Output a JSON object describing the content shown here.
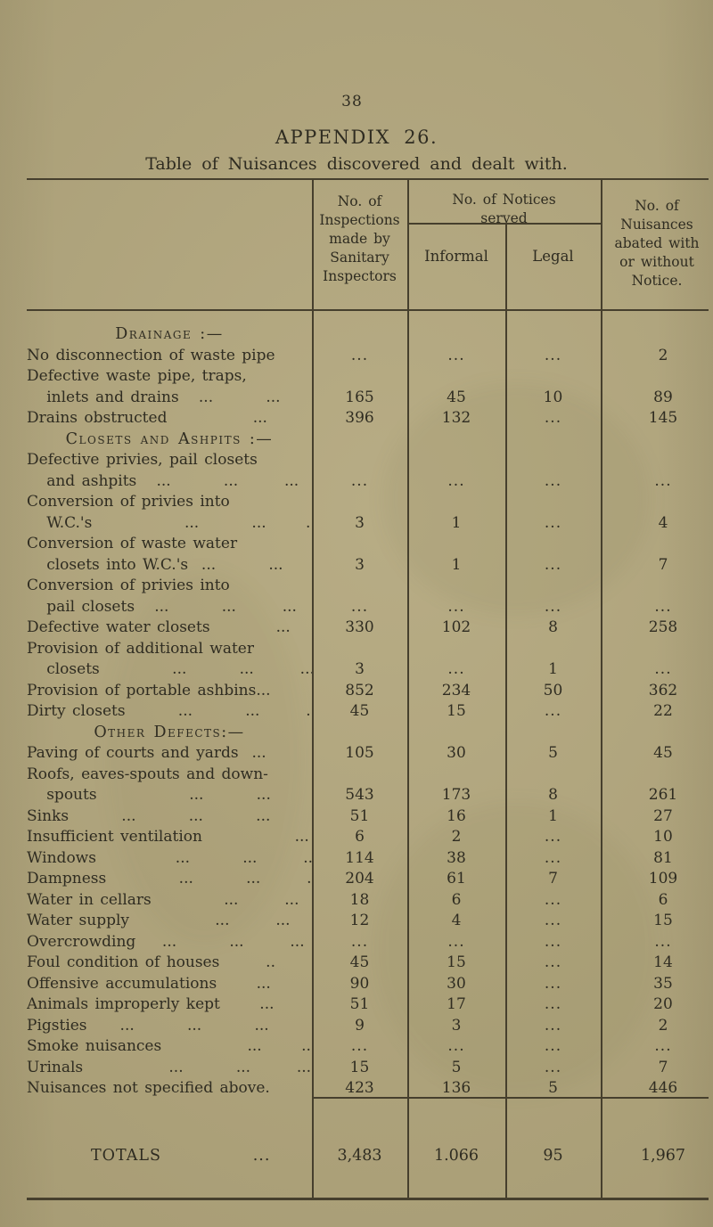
{
  "page": {
    "number": "38",
    "title": "APPENDIX 26.",
    "subtitle": "Table of Nuisances discovered and dealt with."
  },
  "table": {
    "headers": {
      "inspections_lines": [
        "No. of",
        "Inspections",
        "made by",
        "Sanitary",
        "Inspectors"
      ],
      "notices_group_lines": [
        "No. of Notices",
        "served"
      ],
      "informal": "Informal",
      "legal": "Legal",
      "abated_lines": [
        "No. of",
        "Nuisances",
        "abated with",
        "or without",
        "Notice."
      ]
    },
    "rows": [
      {
        "type": "section",
        "text": "Drainage :—"
      },
      {
        "type": "data",
        "lines": [
          "No disconnection of waste pipe"
        ],
        "inspections": "...",
        "informal": "...",
        "legal": "...",
        "abated": "2"
      },
      {
        "type": "data",
        "lines": [
          "Defective waste pipe, traps,",
          "   inlets and drains   ...        ..."
        ],
        "inspections": "165",
        "informal": "45",
        "legal": "10",
        "abated": "89"
      },
      {
        "type": "data",
        "lines": [
          "Drains obstructed             ...       ..."
        ],
        "inspections": "396",
        "informal": "132",
        "legal": "...",
        "abated": "145"
      },
      {
        "type": "section",
        "text": "Closets and Ashpits :—"
      },
      {
        "type": "data",
        "lines": [
          "Defective privies, pail closets",
          "   and ashpits   ...        ...       ..."
        ],
        "inspections": "...",
        "informal": "...",
        "legal": "...",
        "abated": "..."
      },
      {
        "type": "data",
        "lines": [
          "Conversion of privies into",
          "   W.C.'s              ...        ...      .."
        ],
        "inspections": "3",
        "informal": "1",
        "legal": "...",
        "abated": "4"
      },
      {
        "type": "data",
        "lines": [
          "Conversion of waste water",
          "   closets into W.C.'s  ...        ..."
        ],
        "inspections": "3",
        "informal": "1",
        "legal": "...",
        "abated": "7"
      },
      {
        "type": "data",
        "lines": [
          "Conversion of privies into",
          "   pail closets   ...        ...       ..."
        ],
        "inspections": "...",
        "informal": "...",
        "legal": "...",
        "abated": "..."
      },
      {
        "type": "data",
        "lines": [
          "Defective water closets          ..."
        ],
        "inspections": "330",
        "informal": "102",
        "legal": "8",
        "abated": "258"
      },
      {
        "type": "data",
        "lines": [
          "Provision of additional water",
          "   closets           ...        ...       ..."
        ],
        "inspections": "3",
        "informal": "...",
        "legal": "1",
        "abated": "..."
      },
      {
        "type": "data",
        "lines": [
          "Provision of portable ashbins..."
        ],
        "inspections": "852",
        "informal": "234",
        "legal": "50",
        "abated": "362"
      },
      {
        "type": "data",
        "lines": [
          "Dirty closets        ...        ...       ..."
        ],
        "inspections": "45",
        "informal": "15",
        "legal": "...",
        "abated": "22"
      },
      {
        "type": "section",
        "text": "Other Defects:—"
      },
      {
        "type": "data",
        "lines": [
          "Paving of courts and yards  ..."
        ],
        "inspections": "105",
        "informal": "30",
        "legal": "5",
        "abated": "45"
      },
      {
        "type": "data",
        "lines": [
          "Roofs, eaves-spouts and down-",
          "   spouts              ...        ...       ..."
        ],
        "inspections": "543",
        "informal": "173",
        "legal": "8",
        "abated": "261"
      },
      {
        "type": "data",
        "lines": [
          "Sinks        ...        ...        ...       ..."
        ],
        "inspections": "51",
        "informal": "16",
        "legal": "1",
        "abated": "27"
      },
      {
        "type": "data",
        "lines": [
          "Insufficient ventilation              ..."
        ],
        "inspections": "6",
        "informal": "2",
        "legal": "...",
        "abated": "10"
      },
      {
        "type": "data",
        "lines": [
          "Windows            ...        ...       ..."
        ],
        "inspections": "114",
        "informal": "38",
        "legal": "...",
        "abated": "81"
      },
      {
        "type": "data",
        "lines": [
          "Dampness           ...        ...       ..."
        ],
        "inspections": "204",
        "informal": "61",
        "legal": "7",
        "abated": "109"
      },
      {
        "type": "data",
        "lines": [
          "Water in cellars           ...       ..."
        ],
        "inspections": "18",
        "informal": "6",
        "legal": "...",
        "abated": "6"
      },
      {
        "type": "data",
        "lines": [
          "Water supply             ...       ..."
        ],
        "inspections": "12",
        "informal": "4",
        "legal": "...",
        "abated": "15"
      },
      {
        "type": "data",
        "lines": [
          "Overcrowding    ...        ...       ..."
        ],
        "inspections": "...",
        "informal": "...",
        "legal": "...",
        "abated": "..."
      },
      {
        "type": "data",
        "lines": [
          "Foul condition of houses       .."
        ],
        "inspections": "45",
        "informal": "15",
        "legal": "...",
        "abated": "14"
      },
      {
        "type": "data",
        "lines": [
          "Offensive accumulations      ..."
        ],
        "inspections": "90",
        "informal": "30",
        "legal": "...",
        "abated": "35"
      },
      {
        "type": "data",
        "lines": [
          "Animals improperly kept      ..."
        ],
        "inspections": "51",
        "informal": "17",
        "legal": "...",
        "abated": "20"
      },
      {
        "type": "data",
        "lines": [
          "Pigsties     ...        ...        ...       ..."
        ],
        "inspections": "9",
        "informal": "3",
        "legal": "...",
        "abated": "2"
      },
      {
        "type": "data",
        "lines": [
          "Smoke nuisances             ...      ..."
        ],
        "inspections": "...",
        "informal": "...",
        "legal": "...",
        "abated": "..."
      },
      {
        "type": "data",
        "lines": [
          "Urinals             ...        ...       ..."
        ],
        "inspections": "15",
        "informal": "5",
        "legal": "...",
        "abated": "7"
      },
      {
        "type": "data",
        "lines": [
          "Nuisances not specified above."
        ],
        "inspections": "423",
        "informal": "136",
        "legal": "5",
        "abated": "446"
      }
    ],
    "totals": {
      "label": "TOTALS            ...        ...",
      "inspections": "3,483",
      "informal": "1.066",
      "legal": "95",
      "abated": "1,967"
    }
  }
}
